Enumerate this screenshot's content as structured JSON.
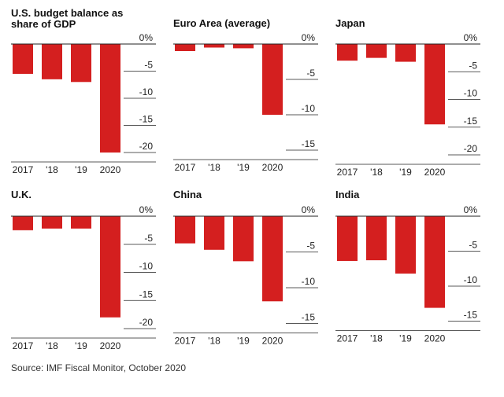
{
  "colors": {
    "bar": "#d41f1f",
    "axis": "#222222",
    "grid": "#222222",
    "text": "#111111"
  },
  "chart_data": [
    {
      "type": "bar",
      "title_lines": [
        "U.S. budget balance as",
        "share of GDP"
      ],
      "categories": [
        "2017",
        "'18",
        "'19",
        "2020"
      ],
      "values": [
        -5.5,
        -6.5,
        -7.0,
        -20.0
      ],
      "ylim": [
        -20,
        0
      ],
      "ticks": [
        0,
        -5,
        -10,
        -15,
        -20
      ],
      "tick_labels": [
        "0%",
        "-5",
        "-10",
        "-15",
        "-20"
      ],
      "grid": "ticks"
    },
    {
      "type": "bar",
      "title_lines": [
        "Euro Area (average)"
      ],
      "categories": [
        "2017",
        "'18",
        "'19",
        "2020"
      ],
      "values": [
        -1.0,
        -0.5,
        -0.6,
        -10.0
      ],
      "ylim": [
        -15,
        0
      ],
      "ticks": [
        0,
        -5,
        -10,
        -15
      ],
      "tick_labels": [
        "0%",
        "-5",
        "-10",
        "-15"
      ],
      "grid": "ticks"
    },
    {
      "type": "bar",
      "title_lines": [
        "Japan"
      ],
      "categories": [
        "2017",
        "'18",
        "'19",
        "2020"
      ],
      "values": [
        -3.0,
        -2.5,
        -3.2,
        -14.5
      ],
      "ylim": [
        -20,
        0
      ],
      "ticks": [
        0,
        -5,
        -10,
        -15,
        -20
      ],
      "tick_labels": [
        "0%",
        "-5",
        "-10",
        "-15",
        "-20"
      ],
      "grid": "ticks"
    },
    {
      "type": "bar",
      "title_lines": [
        "U.K."
      ],
      "categories": [
        "2017",
        "'18",
        "'19",
        "2020"
      ],
      "values": [
        -2.5,
        -2.2,
        -2.2,
        -18.0
      ],
      "ylim": [
        -20,
        0
      ],
      "ticks": [
        0,
        -5,
        -10,
        -15,
        -20
      ],
      "tick_labels": [
        "0%",
        "-5",
        "-10",
        "-15",
        "-20"
      ],
      "grid": "ticks"
    },
    {
      "type": "bar",
      "title_lines": [
        "China"
      ],
      "categories": [
        "2017",
        "'18",
        "'19",
        "2020"
      ],
      "values": [
        -3.8,
        -4.7,
        -6.3,
        -11.9
      ],
      "ylim": [
        -15,
        0
      ],
      "ticks": [
        0,
        -5,
        -10,
        -15
      ],
      "tick_labels": [
        "0%",
        "-5",
        "-10",
        "-15"
      ],
      "grid": "ticks"
    },
    {
      "type": "bar",
      "title_lines": [
        "India"
      ],
      "categories": [
        "2017",
        "'18",
        "'19",
        "2020"
      ],
      "values": [
        -6.4,
        -6.3,
        -8.2,
        -13.1
      ],
      "ylim": [
        -15,
        0
      ],
      "ticks": [
        0,
        -5,
        -10,
        -15
      ],
      "tick_labels": [
        "0%",
        "-5",
        "-10",
        "-15"
      ],
      "grid": "ticks"
    }
  ],
  "source": "Source: IMF Fiscal Monitor, October 2020"
}
